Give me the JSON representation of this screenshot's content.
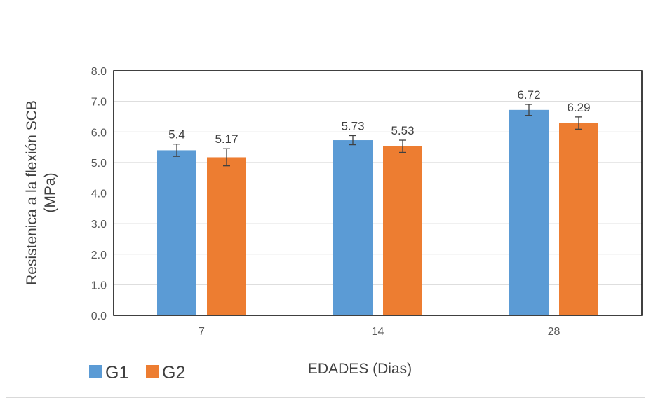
{
  "chart_data": {
    "type": "bar",
    "categories": [
      "7",
      "14",
      "28"
    ],
    "series": [
      {
        "name": "G1",
        "color": "#5b9bd5",
        "values": [
          5.4,
          5.73,
          6.72
        ],
        "error": [
          0.2,
          0.15,
          0.18
        ]
      },
      {
        "name": "G2",
        "color": "#ed7d31",
        "values": [
          5.17,
          5.53,
          6.29
        ],
        "error": [
          0.28,
          0.2,
          0.2
        ]
      }
    ],
    "data_labels": [
      [
        "5.4",
        "5.73",
        "6.72"
      ],
      [
        "5.17",
        "5.53",
        "6.29"
      ]
    ],
    "xlabel": "EDADES (Dias)",
    "ylabel_line1": "Resistenica a la flexión SCB",
    "ylabel_line2": "(MPa)",
    "ylim": [
      0,
      8
    ],
    "yticks": [
      "0.0",
      "1.0",
      "2.0",
      "3.0",
      "4.0",
      "5.0",
      "6.0",
      "7.0",
      "8.0"
    ],
    "grid": true,
    "legend_position": "bottom-left"
  }
}
